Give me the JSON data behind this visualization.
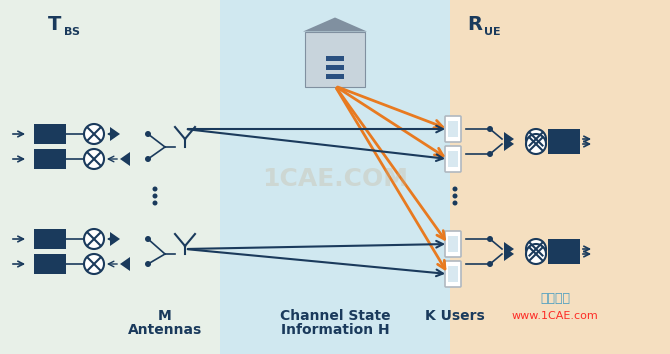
{
  "bg_left_color": "#e8f0e8",
  "bg_mid_color": "#d0e8f0",
  "bg_right_color": "#f5dfc0",
  "dark_blue": "#1a3a5c",
  "orange_color": "#e87a20",
  "label_TBS": "T",
  "label_TBS_sub": "BS",
  "label_RUE": "R",
  "label_RUE_sub": "UE",
  "label_M": "M\nAntennas",
  "label_CSI": "Channel State\nInformation H",
  "label_K": "K Users",
  "watermark1": "仿真在线",
  "watermark2": "www.1CAE.com",
  "fig_width": 6.7,
  "fig_height": 3.54,
  "dpi": 100
}
